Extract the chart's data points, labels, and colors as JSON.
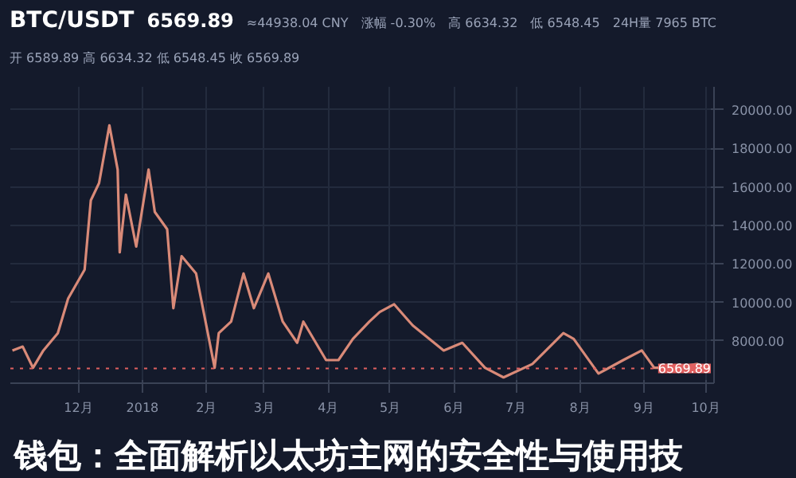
{
  "chart_data": {
    "type": "line",
    "title": "钱包：全面解析以太坊主网的安全性与使用技",
    "annotations": [
      "BTC/USDT",
      "6569.89",
      "≈44938.04 CNY",
      "涨幅 -0.30%",
      "高 6634.32",
      "低 6548.45",
      "24H量 7965 BTC",
      "开 6589.89 高 6634.32 低 6548.45 收 6569.89"
    ],
    "series": [
      {
        "color": "#d98a78",
        "x": [
          "2017-10-30",
          "2017-11-04",
          "2017-11-09",
          "2017-11-14",
          "2017-11-21",
          "2017-11-26",
          "2017-12-04",
          "2017-12-07",
          "2017-12-11",
          "2017-12-16",
          "2017-12-20",
          "2017-12-21",
          "2017-12-24",
          "2017-12-29",
          "2018-01-04",
          "2018-01-07",
          "2018-01-13",
          "2018-01-16",
          "2018-01-20",
          "2018-01-27",
          "2018-02-05",
          "2018-02-07",
          "2018-02-13",
          "2018-02-19",
          "2018-02-24",
          "2018-03-03",
          "2018-03-10",
          "2018-03-17",
          "2018-03-20",
          "2018-03-31",
          "2018-04-06",
          "2018-04-13",
          "2018-04-21",
          "2018-04-26",
          "2018-05-03",
          "2018-05-12",
          "2018-05-27",
          "2018-06-05",
          "2018-06-16",
          "2018-06-25",
          "2018-07-09",
          "2018-07-24",
          "2018-07-29",
          "2018-08-10",
          "2018-08-22",
          "2018-08-31",
          "2018-09-06",
          "2018-09-15",
          "2018-09-27",
          "2018-09-29"
        ],
        "values": [
          7500,
          7700,
          6600,
          7500,
          8400,
          10200,
          11700,
          15300,
          16200,
          19200,
          16900,
          12600,
          15600,
          12900,
          16900,
          14700,
          13800,
          9700,
          12400,
          11500,
          6600,
          8400,
          9000,
          11500,
          9700,
          11500,
          9000,
          7900,
          9000,
          7000,
          7000,
          8100,
          9000,
          9500,
          9900,
          8800,
          7500,
          7900,
          6600,
          6100,
          6800,
          8400,
          8100,
          6300,
          7000,
          7500,
          6600,
          6600,
          6800,
          6600
        ]
      }
    ],
    "xlim": [
      "2017-10-29",
      "2018-10-05"
    ],
    "xticks": [
      {
        "value": "2017-12-01",
        "label": "12月"
      },
      {
        "value": "2018-01-01",
        "label": "2018"
      },
      {
        "value": "2018-02-01",
        "label": "2月"
      },
      {
        "value": "2018-03-01",
        "label": "3月"
      },
      {
        "value": "2018-04-01",
        "label": "4月"
      },
      {
        "value": "2018-05-01",
        "label": "5月"
      },
      {
        "value": "2018-06-01",
        "label": "6月"
      },
      {
        "value": "2018-07-01",
        "label": "7月"
      },
      {
        "value": "2018-08-01",
        "label": "8月"
      },
      {
        "value": "2018-09-01",
        "label": "9月"
      },
      {
        "value": "2018-10-01",
        "label": "10月"
      }
    ],
    "ylim": [
      5800,
      21200
    ],
    "yticks": [
      {
        "value": 8000,
        "label": "8000.00"
      },
      {
        "value": 10000,
        "label": "10000.00"
      },
      {
        "value": 12000,
        "label": "12000.00"
      },
      {
        "value": 14000,
        "label": "14000.00"
      },
      {
        "value": 16000,
        "label": "16000.00"
      },
      {
        "value": 18000,
        "label": "18000.00"
      },
      {
        "value": 20000,
        "label": "20000.00"
      }
    ],
    "ref_lines": [
      {
        "axis": "y",
        "value": 6569.89,
        "label": "6569.89",
        "color": "#e06060",
        "line_style": "dotted"
      }
    ],
    "grid": true
  }
}
